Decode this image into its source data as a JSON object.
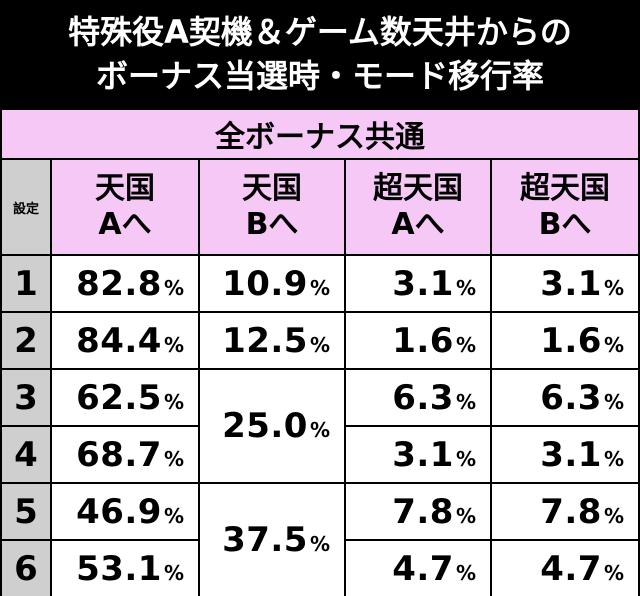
{
  "title": {
    "line1": "特殊役A契機＆ゲーム数天井からの",
    "line2": "ボーナス当選時・モード移行率"
  },
  "table": {
    "group_header": "全ボーナス共通",
    "setting_header": "設定",
    "columns": [
      {
        "line1": "天国",
        "line2": "Aへ"
      },
      {
        "line1": "天国",
        "line2": "Bへ"
      },
      {
        "line1": "超天国",
        "line2": "Aへ"
      },
      {
        "line1": "超天国",
        "line2": "Bへ"
      }
    ],
    "percent_sign": "%",
    "rows": [
      {
        "setting": "1",
        "heaven_a": "82.8",
        "super_a": "3.1",
        "super_b": "3.1"
      },
      {
        "setting": "2",
        "heaven_a": "84.4",
        "super_a": "1.6",
        "super_b": "1.6"
      },
      {
        "setting": "3",
        "heaven_a": "62.5",
        "super_a": "6.3",
        "super_b": "6.3"
      },
      {
        "setting": "4",
        "heaven_a": "68.7",
        "super_a": "3.1",
        "super_b": "3.1"
      },
      {
        "setting": "5",
        "heaven_a": "46.9",
        "super_a": "7.8",
        "super_b": "7.8"
      },
      {
        "setting": "6",
        "heaven_a": "53.1",
        "super_a": "4.7",
        "super_b": "4.7"
      }
    ],
    "heaven_b": [
      {
        "value": "10.9",
        "settings": [
          "1"
        ]
      },
      {
        "value": "12.5",
        "settings": [
          "2"
        ]
      },
      {
        "value": "25.0",
        "settings": [
          "3",
          "4"
        ]
      },
      {
        "value": "37.5",
        "settings": [
          "5",
          "6"
        ]
      }
    ]
  }
}
